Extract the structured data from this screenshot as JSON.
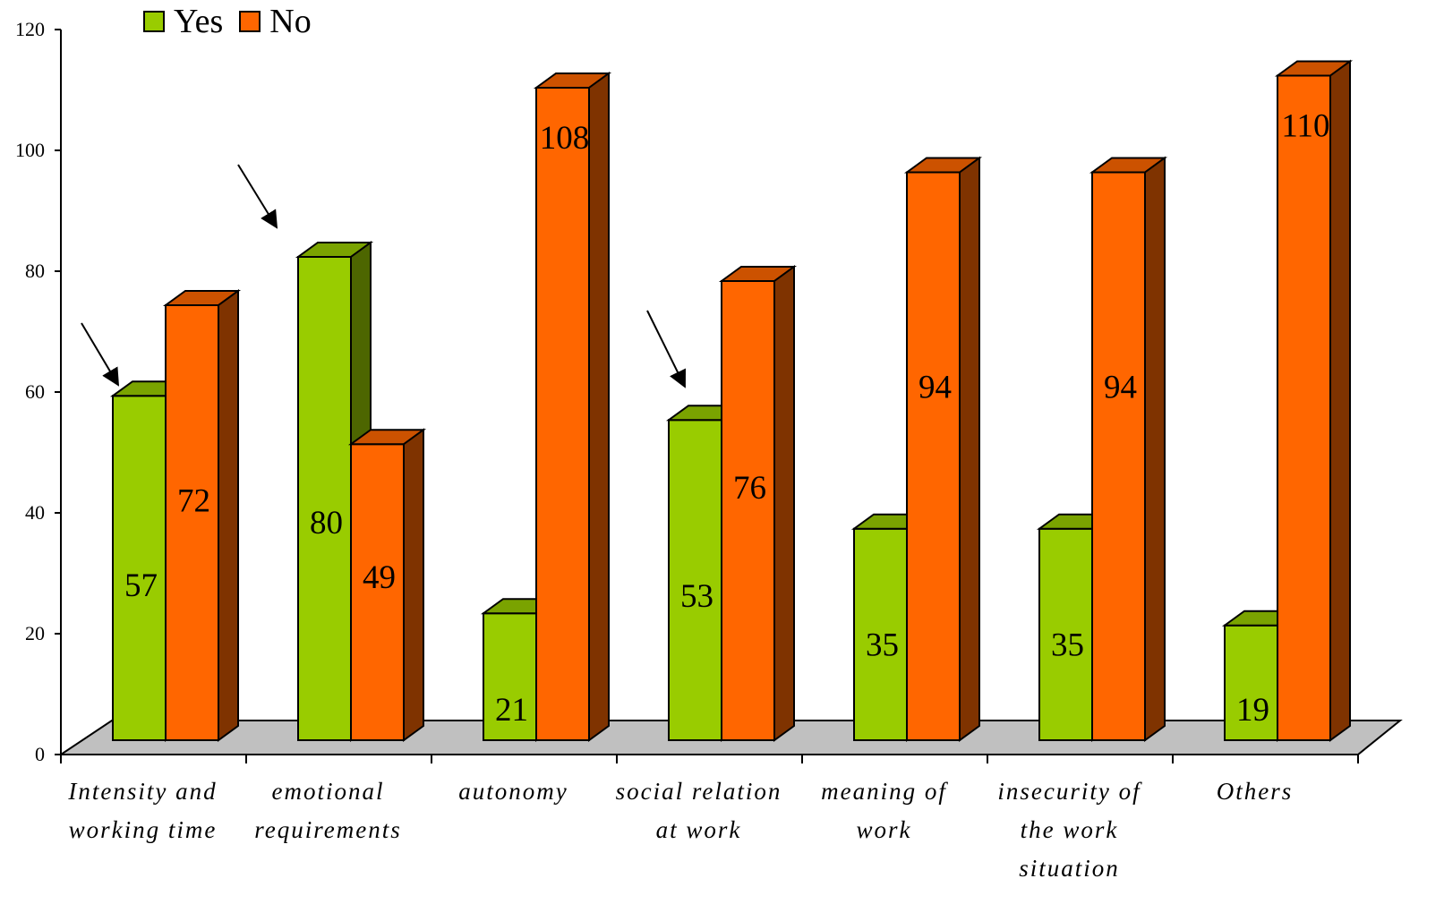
{
  "legend": {
    "yes_label": "Yes",
    "no_label": "No"
  },
  "chart_data": {
    "type": "bar",
    "categories": [
      [
        "Intensity and",
        "working time"
      ],
      [
        "emotional",
        "requirements"
      ],
      [
        "autonomy"
      ],
      [
        "social relation",
        "at work"
      ],
      [
        "meaning of",
        "work"
      ],
      [
        "insecurity of",
        "the work",
        "situation"
      ],
      [
        "Others"
      ]
    ],
    "series": [
      {
        "name": "Yes",
        "values": [
          57,
          80,
          21,
          53,
          35,
          35,
          19
        ],
        "color": "#99CC00",
        "side_color": "#4D6600",
        "top_color": "#7AA300"
      },
      {
        "name": "No",
        "values": [
          72,
          49,
          108,
          76,
          94,
          94,
          110
        ],
        "color": "#FF6600",
        "side_color": "#7F3300",
        "top_color": "#CC5200"
      }
    ],
    "ylim": [
      0,
      120
    ],
    "yticks": [
      0,
      20,
      40,
      60,
      80,
      100,
      120
    ],
    "floor_color": "#C0C0C0",
    "title": "",
    "xlabel": "",
    "ylabel": "",
    "legend_position": "top-left",
    "annotations": [
      "arrow pointing to Intensity and working time Yes bar",
      "arrow pointing to emotional requirements Yes bar",
      "arrow pointing to social relation at work Yes bar"
    ]
  }
}
